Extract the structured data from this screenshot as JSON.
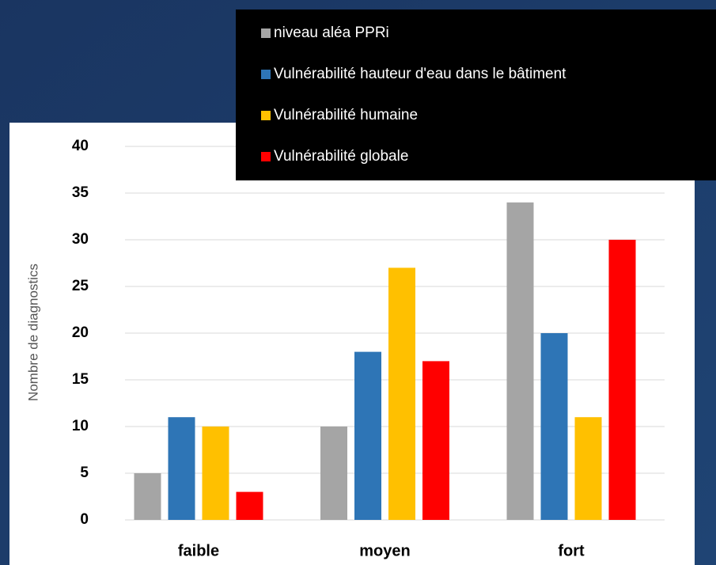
{
  "chart_data": {
    "type": "bar",
    "y_label": "Nombre de diagnostics",
    "categories": [
      "faible",
      "moyen",
      "fort"
    ],
    "series": [
      {
        "name": "niveau aléa PPRi",
        "color": "#a5a5a5",
        "values": [
          5,
          10,
          34
        ]
      },
      {
        "name": "Vulnérabilité hauteur d'eau dans le bâtiment",
        "color": "#2e75b6",
        "values": [
          11,
          18,
          20
        ]
      },
      {
        "name": "Vulnérabilité humaine",
        "color": "#ffc000",
        "values": [
          10,
          27,
          11
        ]
      },
      {
        "name": "Vulnérabilité globale",
        "color": "#ff0000",
        "values": [
          3,
          17,
          30
        ]
      }
    ],
    "ylim": [
      0,
      40
    ],
    "yticks": [
      0,
      5,
      10,
      15,
      20,
      25,
      30,
      35,
      40
    ],
    "grid": true,
    "legend": "top-right"
  }
}
